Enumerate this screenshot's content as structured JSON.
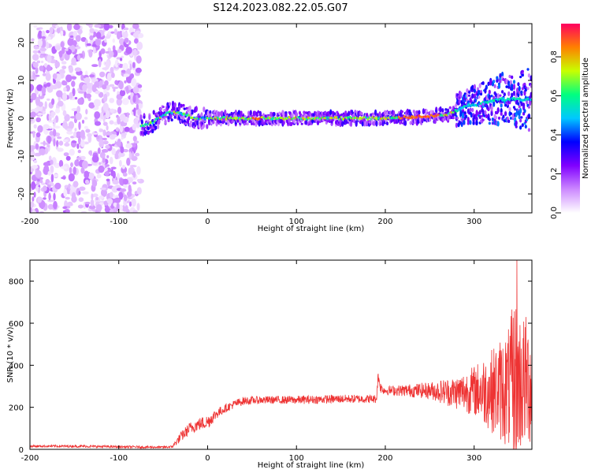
{
  "title": "S124.2023.082.22.05.G07",
  "chart_data": [
    {
      "type": "heatmap",
      "name": "spectrogram",
      "xlabel": "Height of straight line (km)",
      "ylabel": "Frequency (Hz)",
      "xlim": [
        -200,
        365
      ],
      "ylim": [
        -25,
        25
      ],
      "xticks": [
        -200,
        -100,
        0,
        100,
        200,
        300
      ],
      "yticks": [
        -20,
        -10,
        0,
        10,
        20
      ],
      "grid": false,
      "colorbar": {
        "label": "Normalized spectral amplitude",
        "range": [
          0.0,
          0.97
        ],
        "ticks": [
          0.0,
          0.2,
          0.4,
          0.6,
          0.8
        ],
        "colormap": [
          "#ffffff",
          "#cc88ff",
          "#8000ff",
          "#0000ff",
          "#00c8ff",
          "#00ff80",
          "#c8ff00",
          "#ff8000",
          "#ff0060"
        ]
      },
      "regions": [
        {
          "x": [
            -200,
            -75
          ],
          "freq": [
            -25,
            25
          ],
          "description": "broadband noise",
          "amplitude": [
            0.0,
            0.2
          ]
        },
        {
          "x": [
            -75,
            0
          ],
          "freq_center": [
            -2,
            1
          ],
          "amplitude": [
            0.2,
            0.8
          ]
        },
        {
          "x": [
            0,
            270
          ],
          "freq_center": [
            0,
            0
          ],
          "amplitude": [
            0.3,
            0.95
          ]
        },
        {
          "x": [
            270,
            365
          ],
          "freq_center": [
            1,
            5
          ],
          "amplitude": [
            0.2,
            0.6
          ]
        }
      ],
      "signal_track": {
        "x": [
          -75,
          -65,
          -55,
          -45,
          -35,
          -25,
          -15,
          0,
          50,
          100,
          150,
          200,
          250,
          270,
          290,
          310,
          330,
          350,
          365
        ],
        "freq": [
          -2,
          -1.5,
          0,
          1.5,
          1.5,
          1,
          0,
          0,
          0,
          0,
          0,
          0,
          0.5,
          1,
          3,
          4,
          5,
          5,
          5
        ]
      }
    },
    {
      "type": "line",
      "name": "snr",
      "xlabel": "Height of straight line (km)",
      "ylabel": "SNR (10 * v/v)",
      "xlim": [
        -200,
        365
      ],
      "ylim": [
        0,
        900
      ],
      "xticks": [
        -200,
        -100,
        0,
        100,
        200,
        300
      ],
      "yticks": [
        0,
        200,
        400,
        600,
        800
      ],
      "grid": false,
      "color": "#ee3333",
      "envelope": {
        "x": [
          -200,
          -150,
          -100,
          -50,
          -40,
          -30,
          -20,
          -10,
          0,
          10,
          20,
          30,
          40,
          60,
          100,
          150,
          190,
          192,
          195,
          200,
          250,
          280,
          300,
          320,
          340,
          345,
          350,
          365
        ],
        "mean": [
          15,
          15,
          12,
          10,
          12,
          60,
          100,
          120,
          130,
          170,
          195,
          215,
          230,
          235,
          235,
          240,
          240,
          350,
          290,
          280,
          280,
          270,
          280,
          280,
          290,
          300,
          320,
          320
        ],
        "spread": [
          5,
          6,
          6,
          5,
          6,
          25,
          30,
          30,
          35,
          25,
          20,
          20,
          20,
          18,
          20,
          20,
          20,
          30,
          25,
          20,
          40,
          80,
          120,
          200,
          300,
          450,
          350,
          300
        ]
      },
      "peak": {
        "x": 348,
        "y": 900
      }
    }
  ]
}
